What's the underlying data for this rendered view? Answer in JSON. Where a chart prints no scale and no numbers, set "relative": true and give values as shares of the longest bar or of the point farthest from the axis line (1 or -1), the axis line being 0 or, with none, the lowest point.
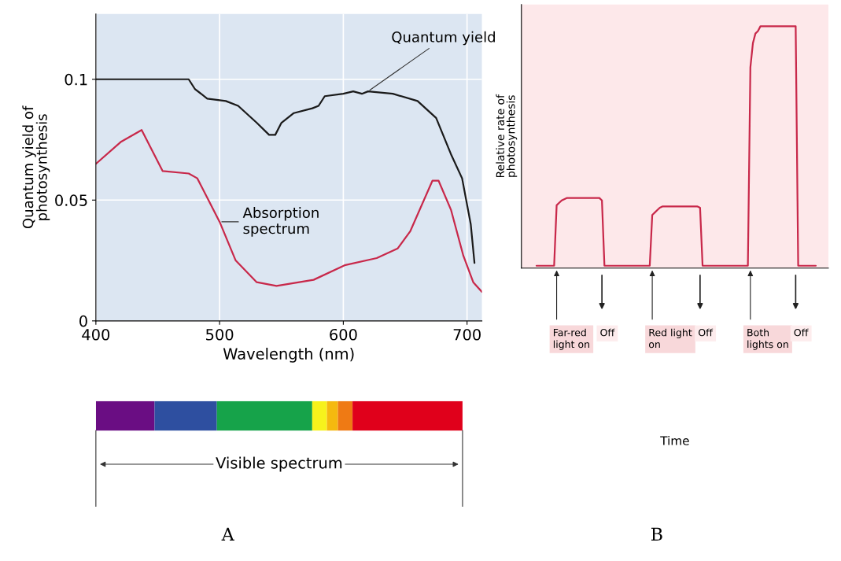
{
  "chart_data": [
    {
      "type": "line",
      "title": "A",
      "xlabel": "Wavelength (nm)",
      "ylabel": "Quantum yield of\nphotosynthesis",
      "xlim": [
        400,
        712
      ],
      "ylim": [
        0,
        0.127
      ],
      "xticks": [
        400,
        500,
        600,
        700
      ],
      "yticks": [
        0,
        0.05,
        0.1
      ],
      "grid": true,
      "annotations": [
        "Visible spectrum"
      ],
      "series": [
        {
          "name": "Quantum yield",
          "color": "#1a1a1a",
          "x": [
            400,
            475,
            480,
            490,
            505,
            515,
            530,
            540,
            545,
            550,
            560,
            575,
            580,
            585,
            600,
            608,
            615,
            620,
            640,
            660,
            675,
            687,
            696,
            703,
            706
          ],
          "values": [
            0.1,
            0.1,
            0.096,
            0.092,
            0.091,
            0.089,
            0.082,
            0.077,
            0.077,
            0.082,
            0.086,
            0.088,
            0.089,
            0.093,
            0.094,
            0.095,
            0.094,
            0.095,
            0.094,
            0.091,
            0.084,
            0.069,
            0.059,
            0.04,
            0.024
          ]
        },
        {
          "name": "Absorption\nspectrum",
          "color": "#c8284a",
          "x": [
            400,
            420,
            437,
            454,
            475,
            482,
            500,
            513,
            530,
            546,
            576,
            601,
            627,
            644,
            654,
            672,
            677,
            687,
            697,
            705,
            712
          ],
          "values": [
            0.065,
            0.074,
            0.079,
            0.062,
            0.061,
            0.059,
            0.041,
            0.025,
            0.016,
            0.0145,
            0.017,
            0.023,
            0.026,
            0.03,
            0.037,
            0.058,
            0.058,
            0.046,
            0.027,
            0.016,
            0.012
          ]
        }
      ]
    },
    {
      "type": "line",
      "title": "B",
      "relative": true,
      "xlabel": "Time",
      "ylabel": "Relative rate of\nphotosynthesis",
      "annotations": [
        "Far-red\nlight on",
        "Off",
        "Red light\non",
        "Off",
        "Both\nlights on",
        "Off"
      ],
      "categories": [
        null,
        null,
        null,
        null,
        null,
        null,
        null,
        null,
        null,
        null,
        null,
        null,
        null,
        null,
        null,
        null,
        null,
        null,
        null,
        null,
        null,
        null,
        null,
        null,
        null,
        null,
        null,
        null,
        null,
        null,
        null,
        null,
        null,
        null,
        null,
        null,
        null,
        null,
        null,
        null,
        null,
        null,
        null,
        null,
        null,
        null,
        null,
        null,
        null,
        null,
        null,
        null,
        null,
        null,
        null,
        null,
        null,
        null,
        null,
        null,
        null,
        null,
        null,
        null,
        null,
        null,
        null,
        null,
        null,
        null,
        null,
        null,
        null,
        null,
        null,
        null,
        null,
        null,
        null,
        null,
        null,
        null,
        null,
        null,
        null,
        null,
        null,
        null,
        null,
        null,
        null,
        null,
        null,
        null,
        null,
        null,
        null,
        null,
        null,
        null,
        null,
        null,
        null,
        null,
        null,
        null,
        null,
        null,
        null,
        null,
        null,
        null
      ],
      "series": [
        {
          "color": "#c8284a",
          "values": [
            0.01,
            0.01,
            0.01,
            0.01,
            0.01,
            0.01,
            0.01,
            0.01,
            0.26,
            0.27,
            0.28,
            0.285,
            0.29,
            0.29,
            0.29,
            0.29,
            0.29,
            0.29,
            0.29,
            0.29,
            0.29,
            0.29,
            0.29,
            0.29,
            0.29,
            0.29,
            0.28,
            0.01,
            0.01,
            0.01,
            0.01,
            0.01,
            0.01,
            0.01,
            0.01,
            0.01,
            0.01,
            0.01,
            0.01,
            0.01,
            0.01,
            0.01,
            0.01,
            0.01,
            0.01,
            0.01,
            0.22,
            0.23,
            0.24,
            0.25,
            0.255,
            0.255,
            0.255,
            0.255,
            0.255,
            0.255,
            0.255,
            0.255,
            0.255,
            0.255,
            0.255,
            0.255,
            0.255,
            0.255,
            0.255,
            0.25,
            0.01,
            0.01,
            0.01,
            0.01,
            0.01,
            0.01,
            0.01,
            0.01,
            0.01,
            0.01,
            0.01,
            0.01,
            0.01,
            0.01,
            0.01,
            0.01,
            0.01,
            0.01,
            0.01,
            0.83,
            0.93,
            0.97,
            0.98,
            1,
            1,
            1,
            1,
            1,
            1,
            1,
            1,
            1,
            1,
            1,
            1,
            1,
            1,
            1,
            0.01,
            0.01,
            0.01,
            0.01,
            0.01,
            0.01,
            0.01,
            0.01
          ]
        }
      ]
    }
  ]
}
